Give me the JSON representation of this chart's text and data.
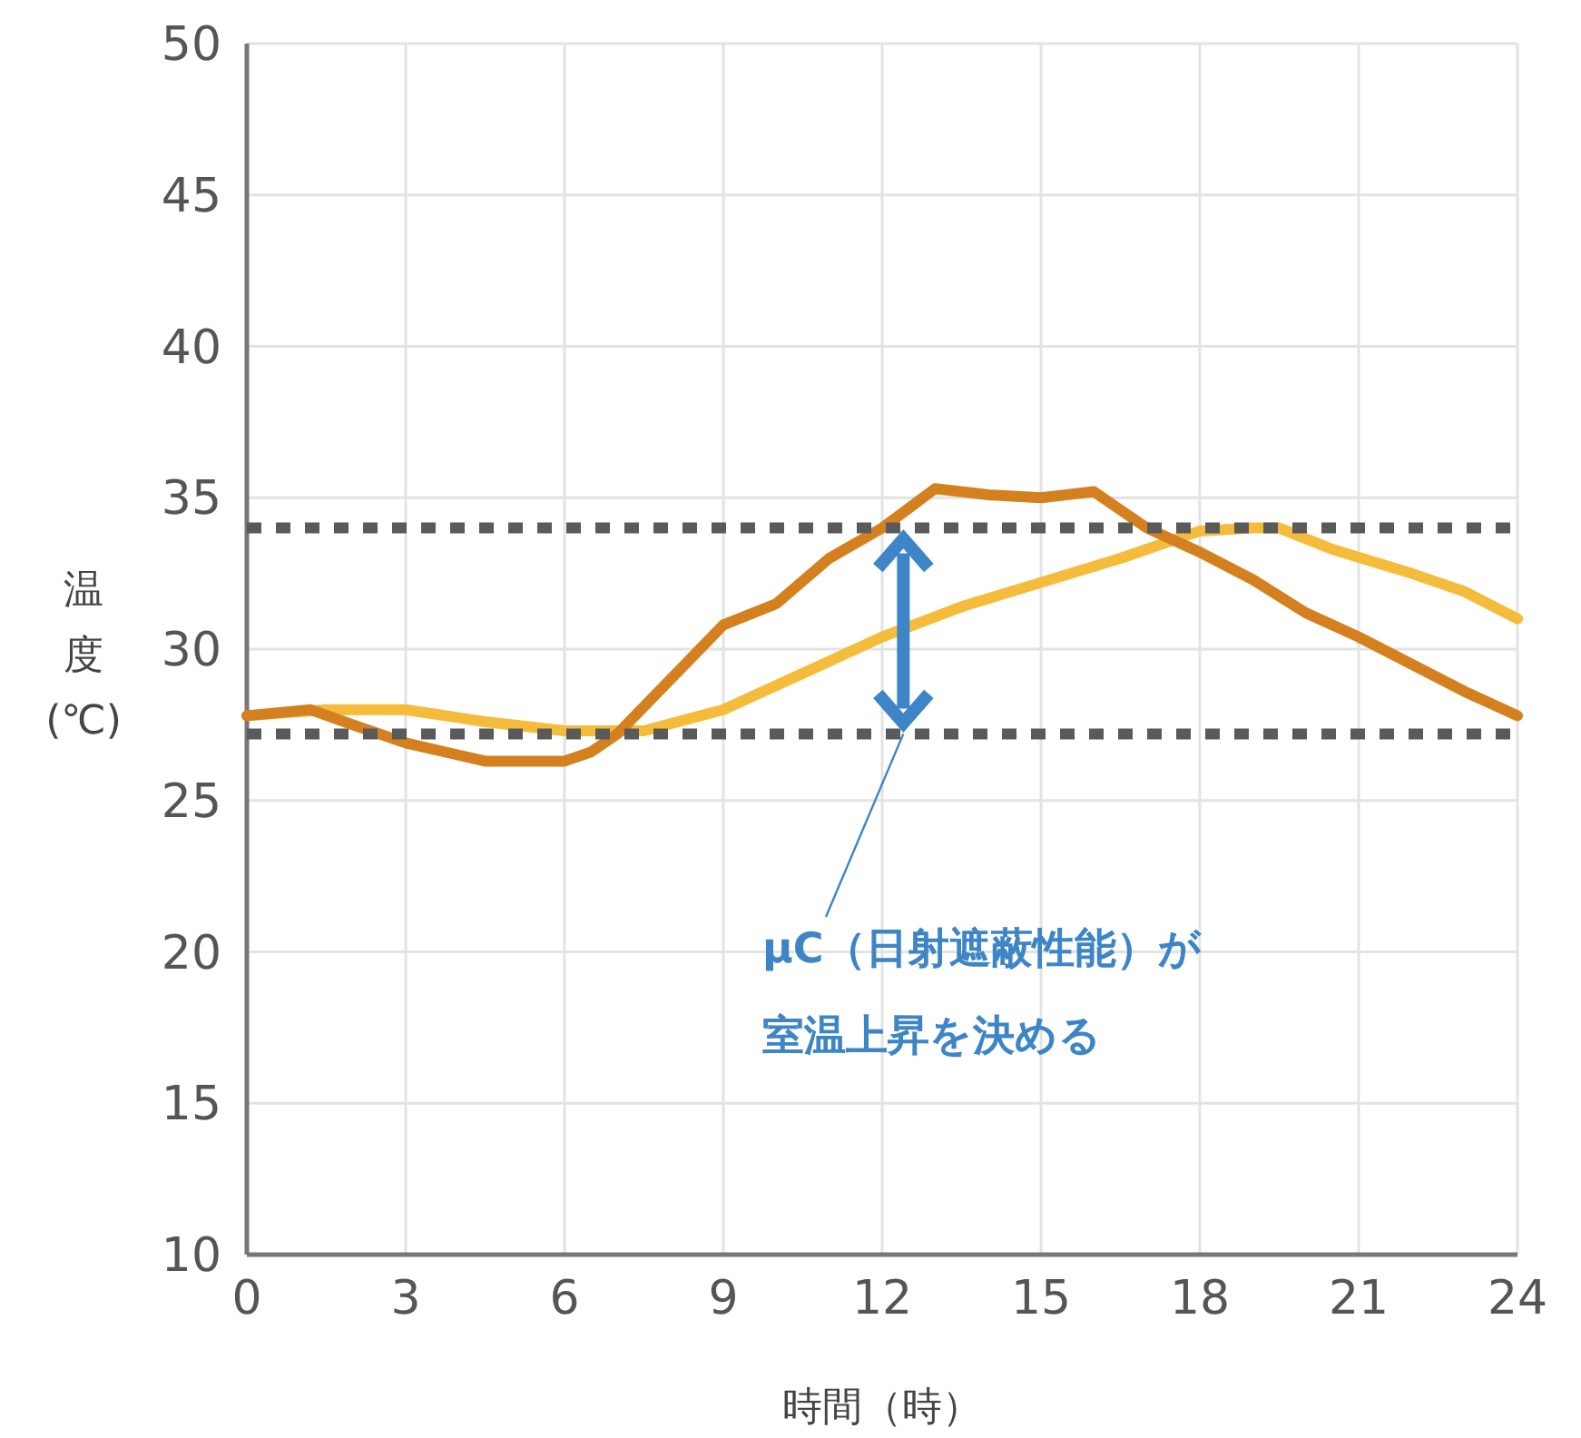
{
  "chart_data": {
    "type": "line",
    "xlabel": "時間（時）",
    "ylabel": "温度(℃)",
    "xlim": [
      0,
      24
    ],
    "xticks": [
      0,
      3,
      6,
      9,
      12,
      15,
      18,
      21,
      24
    ],
    "ylim": [
      10,
      50
    ],
    "yticks": [
      10,
      15,
      20,
      25,
      30,
      35,
      40,
      45,
      50
    ],
    "grid": true,
    "line_style": "solid",
    "marker": "none",
    "series": [
      {
        "color": "#d4801f",
        "x": [
          0,
          1.2,
          2,
          3,
          4,
          4.5,
          5,
          6,
          6.5,
          7,
          8,
          9,
          10,
          11,
          12,
          13,
          14,
          15,
          16,
          17,
          18,
          19,
          20,
          21,
          22,
          23,
          24
        ],
        "values": [
          27.8,
          28.0,
          27.5,
          26.9,
          26.5,
          26.3,
          26.3,
          26.3,
          26.6,
          27.2,
          29.0,
          30.8,
          31.5,
          33.0,
          34.0,
          35.3,
          35.1,
          35.0,
          35.2,
          34.0,
          33.2,
          32.3,
          31.2,
          30.4,
          29.5,
          28.6,
          27.8
        ]
      },
      {
        "color": "#f5bc3c",
        "x": [
          0,
          1.5,
          3,
          4.5,
          6,
          7.5,
          9,
          10.5,
          12,
          13.5,
          15,
          16.5,
          18,
          19,
          19.5,
          20.5,
          22,
          23,
          24
        ],
        "values": [
          27.8,
          28.0,
          28.0,
          27.6,
          27.3,
          27.3,
          28.0,
          29.2,
          30.4,
          31.4,
          32.2,
          33.0,
          33.9,
          34.0,
          34.0,
          33.3,
          32.5,
          31.9,
          31.0
        ]
      }
    ],
    "ref_lines": [
      {
        "axis": "y",
        "value": 34.0,
        "color": "#5a5a5a",
        "line_style": "dotted"
      },
      {
        "axis": "y",
        "value": 27.2,
        "color": "#5a5a5a",
        "line_style": "dotted"
      }
    ],
    "annotations": [
      {
        "text": "μC（日射遮蔽性能）が室温上昇を決める",
        "x": 12.4,
        "y": 27.2
      }
    ]
  }
}
